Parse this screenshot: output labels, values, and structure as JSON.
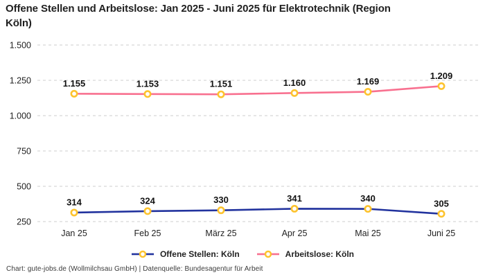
{
  "header": {
    "title": "Offene Stellen und Arbeitslose: Jan 2025 - Juni 2025 für Elektrotechnik (Region\nKöln)"
  },
  "chart_data": {
    "type": "line",
    "title": "Offene Stellen und Arbeitslose: Jan 2025 - Juni 2025 für Elektrotechnik (Region Köln)",
    "categories": [
      "Jan 25",
      "Feb 25",
      "März 25",
      "Apr 25",
      "Mai 25",
      "Juni 25"
    ],
    "series": [
      {
        "name": "Offene Stellen: Köln",
        "color": "#22339e",
        "values": [
          314,
          324,
          330,
          341,
          340,
          305
        ],
        "labels": [
          "314",
          "324",
          "330",
          "341",
          "340",
          "305"
        ]
      },
      {
        "name": "Arbeitslose: Köln",
        "color": "#f8708f",
        "values": [
          1155,
          1153,
          1151,
          1160,
          1169,
          1209
        ],
        "labels": [
          "1.155",
          "1.153",
          "1.151",
          "1.160",
          "1.169",
          "1.209"
        ]
      }
    ],
    "y_ticks": [
      {
        "value": 1500,
        "label": "1.500"
      },
      {
        "value": 1250,
        "label": "1.250"
      },
      {
        "value": 1000,
        "label": "1.000"
      },
      {
        "value": 750,
        "label": "750"
      },
      {
        "value": 500,
        "label": "500"
      },
      {
        "value": 250,
        "label": "250"
      }
    ],
    "ylim": [
      250,
      1500
    ],
    "grid": "horizontal-dashed",
    "legend_position": "bottom",
    "marker": {
      "fill": "#ffffff",
      "stroke": "#fdc32e"
    }
  },
  "footer": {
    "credit": "Chart: gute-jobs.de (Wollmilchsau GmbH) | Datenquelle: Bundesagentur für Arbeit"
  },
  "colors": {
    "background": "#ffffff",
    "gridline": "#cccccc",
    "title_text": "#1f1f1f",
    "axis_text": "#222222",
    "footer_text": "#3a3a3a"
  }
}
